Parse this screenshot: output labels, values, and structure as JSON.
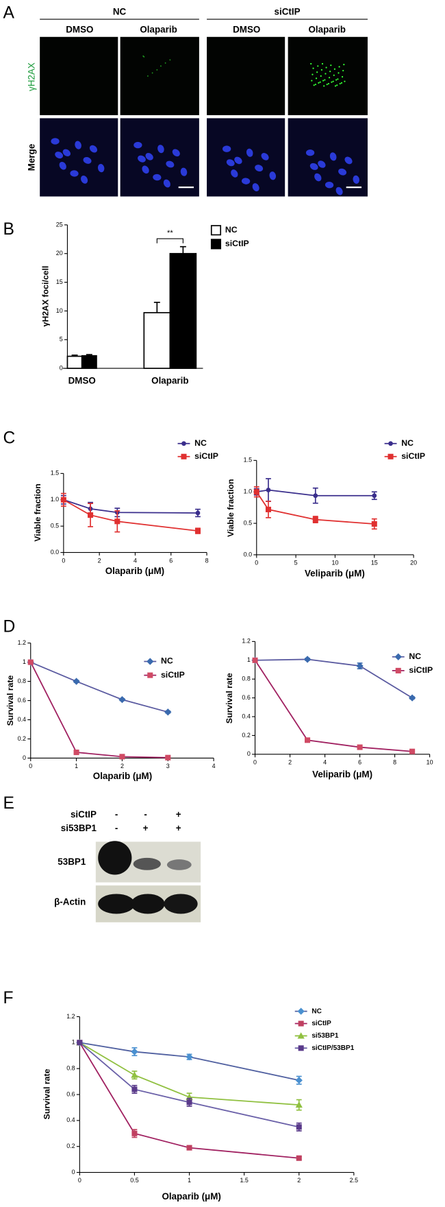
{
  "panel_labels": [
    "A",
    "B",
    "C",
    "D",
    "E",
    "F"
  ],
  "panel_a": {
    "groups": [
      "NC",
      "siCtIP"
    ],
    "columns": [
      "DMSO",
      "Olaparib",
      "DMSO",
      "Olaparib"
    ],
    "rows": [
      "γH2AX",
      "Merge"
    ]
  },
  "panel_e": {
    "rows": [
      {
        "label": "siCtIP",
        "signs": [
          "-",
          "-",
          "+"
        ]
      },
      {
        "label": "si53BP1",
        "signs": [
          "-",
          "+",
          "+"
        ]
      }
    ],
    "blots": [
      "53BP1",
      "β-Actin"
    ]
  },
  "chart_data": [
    {
      "type": "bar",
      "y_label": "γH2AX foci/cell",
      "categories": [
        "DMSO",
        "Olaparib"
      ],
      "series": [
        {
          "name": "NC",
          "color": "#ffffff",
          "values": [
            2.1,
            9.7
          ],
          "errors": [
            0.2,
            1.8
          ]
        },
        {
          "name": "siCtIP",
          "color": "#000000",
          "values": [
            2.2,
            20.0
          ],
          "errors": [
            0.2,
            1.2
          ]
        }
      ],
      "annotation": "**",
      "ylim": [
        0,
        25
      ],
      "yticks": [
        0,
        5,
        10,
        15,
        20,
        25
      ]
    },
    {
      "type": "line",
      "x_label": "Olaparib (μM)",
      "y_label": "Viable fraction",
      "x": [
        0,
        1.5,
        3,
        7.5
      ],
      "series": [
        {
          "name": "NC",
          "color": "#3a2e8c",
          "marker_color": "#3a2e8c",
          "marker": "circle",
          "values": [
            1.0,
            0.83,
            0.76,
            0.75
          ],
          "errors": [
            0.08,
            0.12,
            0.08,
            0.07
          ]
        },
        {
          "name": "siCtIP",
          "color": "#e03030",
          "marker_color": "#e03030",
          "marker": "square",
          "values": [
            1.0,
            0.71,
            0.59,
            0.41
          ],
          "errors": [
            0.12,
            0.22,
            0.2,
            0.05
          ]
        }
      ],
      "xlim": [
        0,
        8
      ],
      "xticks": [
        0,
        2,
        4,
        6,
        8
      ],
      "ylim": [
        0,
        1.5
      ],
      "yticks": [
        {
          "value": 0,
          "label": "0.0"
        },
        {
          "value": 0.5,
          "label": "0.5"
        },
        {
          "value": 1,
          "label": "1.0"
        },
        {
          "value": 1.5,
          "label": "1.5"
        }
      ]
    },
    {
      "type": "line",
      "x_label": "Veliparib (μM)",
      "y_label": "Viable fraction",
      "x": [
        0,
        1.5,
        7.5,
        15
      ],
      "series": [
        {
          "name": "NC",
          "color": "#3a2e8c",
          "marker_color": "#3a2e8c",
          "marker": "circle",
          "values": [
            1.0,
            1.03,
            0.94,
            0.94
          ],
          "errors": [
            0.05,
            0.18,
            0.12,
            0.06
          ]
        },
        {
          "name": "siCtIP",
          "color": "#e03030",
          "marker_color": "#e03030",
          "marker": "square",
          "values": [
            1.0,
            0.72,
            0.56,
            0.49
          ],
          "errors": [
            0.08,
            0.13,
            0.05,
            0.08
          ]
        }
      ],
      "xlim": [
        0,
        20
      ],
      "xticks": [
        0,
        5,
        10,
        15,
        20
      ],
      "ylim": [
        0,
        1.5
      ],
      "yticks": [
        {
          "value": 0,
          "label": "0.0"
        },
        {
          "value": 0.5,
          "label": "0.5"
        },
        {
          "value": 1,
          "label": "1.0"
        },
        {
          "value": 1.5,
          "label": "1.5"
        }
      ]
    },
    {
      "type": "line",
      "x_label": "Olaparib (μM)",
      "y_label": "Survival rate",
      "x": [
        0,
        1,
        2,
        3
      ],
      "series": [
        {
          "name": "NC",
          "color": "#5a5aa0",
          "marker_color": "#3a6aae",
          "marker": "diamond",
          "values": [
            1.0,
            0.8,
            0.61,
            0.48
          ],
          "errors": [
            0.01,
            0.01,
            0.01,
            0.01
          ]
        },
        {
          "name": "siCtIP",
          "color": "#a02060",
          "marker_color": "#d04a64",
          "marker": "square",
          "values": [
            1.0,
            0.06,
            0.015,
            0.005
          ],
          "errors": [
            0.01,
            0.01,
            0.01,
            0.005
          ]
        }
      ],
      "xlim": [
        0,
        4
      ],
      "xticks": [
        0,
        1,
        2,
        3,
        4
      ],
      "ylim": [
        0,
        1.2
      ],
      "yticks": [
        0,
        0.2,
        0.4,
        0.6,
        0.8,
        1,
        1.2
      ]
    },
    {
      "type": "line",
      "x_label": "Veliparib (μM)",
      "y_label": "Survival rate",
      "x": [
        0,
        3,
        6,
        9
      ],
      "series": [
        {
          "name": "NC",
          "color": "#5a5aa0",
          "marker_color": "#3a6aae",
          "marker": "diamond",
          "values": [
            1.0,
            1.01,
            0.94,
            0.6
          ],
          "errors": [
            0.01,
            0.01,
            0.03,
            0.01
          ]
        },
        {
          "name": "siCtIP",
          "color": "#a02060",
          "marker_color": "#d04a64",
          "marker": "square",
          "values": [
            1.0,
            0.15,
            0.075,
            0.03
          ],
          "errors": [
            0.01,
            0.01,
            0.01,
            0.01
          ]
        }
      ],
      "xlim": [
        0,
        10
      ],
      "xticks": [
        0,
        2,
        4,
        6,
        8,
        10
      ],
      "ylim": [
        0,
        1.2
      ],
      "yticks": [
        0,
        0.2,
        0.4,
        0.6,
        0.8,
        1,
        1.2
      ]
    },
    {
      "type": "line",
      "x_label": "Olaparib (μM)",
      "y_label": "Survival rate",
      "x": [
        0,
        0.5,
        1,
        2
      ],
      "series": [
        {
          "name": "NC",
          "color": "#5060a0",
          "marker_color": "#4a90d0",
          "marker": "diamond",
          "values": [
            1.0,
            0.93,
            0.89,
            0.71
          ],
          "errors": [
            0.01,
            0.03,
            0.02,
            0.03
          ]
        },
        {
          "name": "siCtIP",
          "color": "#a02060",
          "marker_color": "#c04060",
          "marker": "square",
          "values": [
            1.0,
            0.3,
            0.19,
            0.11
          ],
          "errors": [
            0.01,
            0.03,
            0.01,
            0.01
          ]
        },
        {
          "name": "si53BP1",
          "color": "#90c040",
          "marker_color": "#90c040",
          "marker": "triangle",
          "values": [
            1.0,
            0.75,
            0.58,
            0.52
          ],
          "errors": [
            0.01,
            0.03,
            0.03,
            0.04
          ]
        },
        {
          "name": "siCtIP/53BP1",
          "color": "#6a60a8",
          "marker_color": "#5a3a8a",
          "marker": "square",
          "values": [
            1.0,
            0.64,
            0.54,
            0.35
          ],
          "errors": [
            0.01,
            0.03,
            0.03,
            0.03
          ]
        }
      ],
      "xlim": [
        0,
        2.5
      ],
      "xticks": [
        0,
        0.5,
        1,
        1.5,
        2,
        2.5
      ],
      "ylim": [
        0,
        1.2
      ],
      "yticks": [
        0,
        0.2,
        0.4,
        0.6,
        0.8,
        1,
        1.2
      ]
    }
  ]
}
